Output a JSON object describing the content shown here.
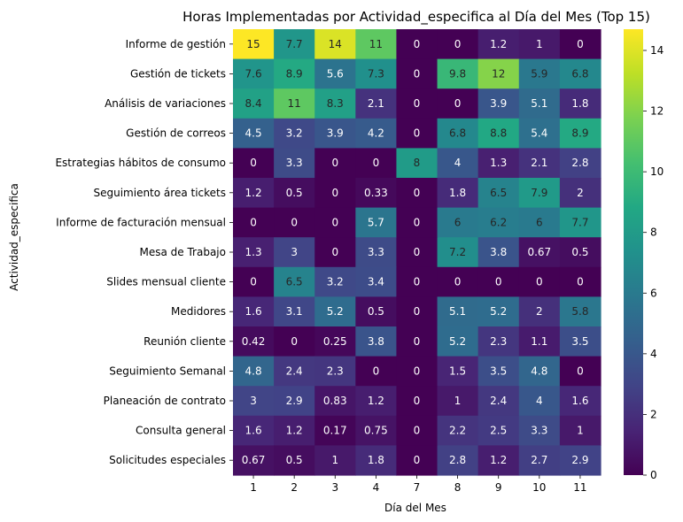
{
  "chart_data": {
    "type": "heatmap",
    "title": "Horas Implementadas por Actividad_especifica al Día del Mes (Top 15)",
    "xlabel": "Día del Mes",
    "ylabel": "Actividad_especifica",
    "colormap": "viridis",
    "colorbar": {
      "min": 0,
      "max": 14.7,
      "ticks": [
        0,
        2,
        4,
        6,
        8,
        10,
        12,
        14
      ]
    },
    "x": [
      "1",
      "2",
      "3",
      "4",
      "7",
      "8",
      "9",
      "10",
      "11"
    ],
    "y": [
      "Informe de gestión",
      "Gestión de tickets",
      "Análisis de variaciones",
      "Gestión de correos",
      "Estrategias hábitos de consumo",
      "Seguimiento área tickets",
      "Informe de facturación mensual",
      "Mesa de Trabajo",
      "Slides mensual cliente",
      "Medidores",
      "Reunión cliente",
      "Seguimiento Semanal",
      "Planeación de contrato",
      "Consulta general",
      "Solicitudes especiales"
    ],
    "values": [
      [
        14.7,
        7.7,
        13.9,
        11.0,
        0,
        0,
        1.2,
        1.0,
        0
      ],
      [
        7.6,
        8.9,
        5.6,
        7.3,
        0,
        9.8,
        12.0,
        5.9,
        6.8
      ],
      [
        8.4,
        11.0,
        8.3,
        2.1,
        0,
        0,
        3.9,
        5.1,
        1.8
      ],
      [
        4.5,
        3.2,
        3.9,
        4.2,
        0,
        6.8,
        8.8,
        5.4,
        8.9
      ],
      [
        0,
        3.3,
        0,
        0,
        8.0,
        4.0,
        1.3,
        2.1,
        2.8
      ],
      [
        1.2,
        0.5,
        0,
        0.33,
        0,
        1.8,
        6.5,
        7.9,
        2.0
      ],
      [
        0,
        0,
        0,
        5.7,
        0,
        6.0,
        6.2,
        6.0,
        7.7
      ],
      [
        1.3,
        3.0,
        0,
        3.3,
        0,
        7.2,
        3.8,
        0.67,
        0.5
      ],
      [
        0,
        6.5,
        3.2,
        3.4,
        0,
        0,
        0,
        0,
        0
      ],
      [
        1.6,
        3.1,
        5.2,
        0.5,
        0,
        5.1,
        5.2,
        2.0,
        5.8
      ],
      [
        0.42,
        0,
        0.25,
        3.8,
        0,
        5.2,
        2.3,
        1.1,
        3.5
      ],
      [
        4.8,
        2.4,
        2.3,
        0,
        0,
        1.5,
        3.5,
        4.8,
        0
      ],
      [
        3.0,
        2.9,
        0.83,
        1.2,
        0,
        1.0,
        2.4,
        4.0,
        1.6
      ],
      [
        1.6,
        1.2,
        0.17,
        0.75,
        0,
        2.2,
        2.5,
        3.3,
        1.0
      ],
      [
        0.67,
        0.5,
        1.0,
        1.8,
        0,
        2.8,
        1.2,
        2.7,
        2.9
      ]
    ],
    "labels": [
      [
        "15",
        "7.7",
        "14",
        "11",
        "0",
        "0",
        "1.2",
        "1",
        "0"
      ],
      [
        "7.6",
        "8.9",
        "5.6",
        "7.3",
        "0",
        "9.8",
        "12",
        "5.9",
        "6.8"
      ],
      [
        "8.4",
        "11",
        "8.3",
        "2.1",
        "0",
        "0",
        "3.9",
        "5.1",
        "1.8"
      ],
      [
        "4.5",
        "3.2",
        "3.9",
        "4.2",
        "0",
        "6.8",
        "8.8",
        "5.4",
        "8.9"
      ],
      [
        "0",
        "3.3",
        "0",
        "0",
        "8",
        "4",
        "1.3",
        "2.1",
        "2.8"
      ],
      [
        "1.2",
        "0.5",
        "0",
        "0.33",
        "0",
        "1.8",
        "6.5",
        "7.9",
        "2"
      ],
      [
        "0",
        "0",
        "0",
        "5.7",
        "0",
        "6",
        "6.2",
        "6",
        "7.7"
      ],
      [
        "1.3",
        "3",
        "0",
        "3.3",
        "0",
        "7.2",
        "3.8",
        "0.67",
        "0.5"
      ],
      [
        "0",
        "6.5",
        "3.2",
        "3.4",
        "0",
        "0",
        "0",
        "0",
        "0"
      ],
      [
        "1.6",
        "3.1",
        "5.2",
        "0.5",
        "0",
        "5.1",
        "5.2",
        "2",
        "5.8"
      ],
      [
        "0.42",
        "0",
        "0.25",
        "3.8",
        "0",
        "5.2",
        "2.3",
        "1.1",
        "3.5"
      ],
      [
        "4.8",
        "2.4",
        "2.3",
        "0",
        "0",
        "1.5",
        "3.5",
        "4.8",
        "0"
      ],
      [
        "3",
        "2.9",
        "0.83",
        "1.2",
        "0",
        "1",
        "2.4",
        "4",
        "1.6"
      ],
      [
        "1.6",
        "1.2",
        "0.17",
        "0.75",
        "0",
        "2.2",
        "2.5",
        "3.3",
        "1"
      ],
      [
        "0.67",
        "0.5",
        "1",
        "1.8",
        "0",
        "2.8",
        "1.2",
        "2.7",
        "2.9"
      ]
    ]
  }
}
